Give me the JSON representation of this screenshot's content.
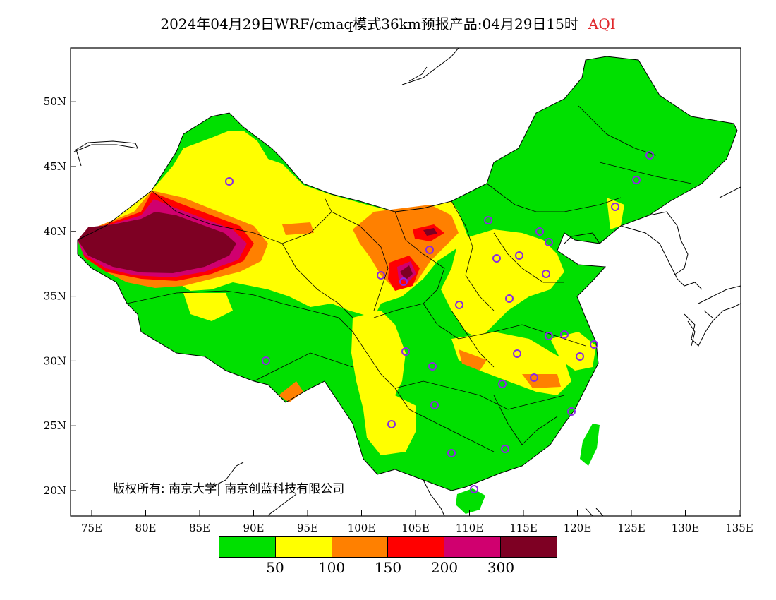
{
  "title": {
    "main": "2024年04月29日WRF/cmaq模式36km预报产品:04月29日15时",
    "variable": "AQI"
  },
  "axes": {
    "x_ticks": [
      "75E",
      "80E",
      "85E",
      "90E",
      "95E",
      "100E",
      "105E",
      "110E",
      "115E",
      "120E",
      "125E",
      "130E",
      "135E"
    ],
    "y_ticks": [
      "20N",
      "25N",
      "30N",
      "35N",
      "40N",
      "45N",
      "50N"
    ]
  },
  "copyright": "版权所有: 南京大学| 南京创蓝科技有限公司",
  "legend": {
    "colors": [
      "#00e000",
      "#ffff00",
      "#ff8000",
      "#ff0000",
      "#d0006f",
      "#7e0023"
    ],
    "labels": [
      "50",
      "100",
      "150",
      "200",
      "300"
    ]
  },
  "colors": {
    "good": "#00e000",
    "moderate": "#ffff00",
    "unhealthy_sensitive": "#ff8000",
    "unhealthy": "#ff0000",
    "very_unhealthy": "#d0006f",
    "hazardous": "#7e0023",
    "station_marker": "#8a2be2"
  }
}
